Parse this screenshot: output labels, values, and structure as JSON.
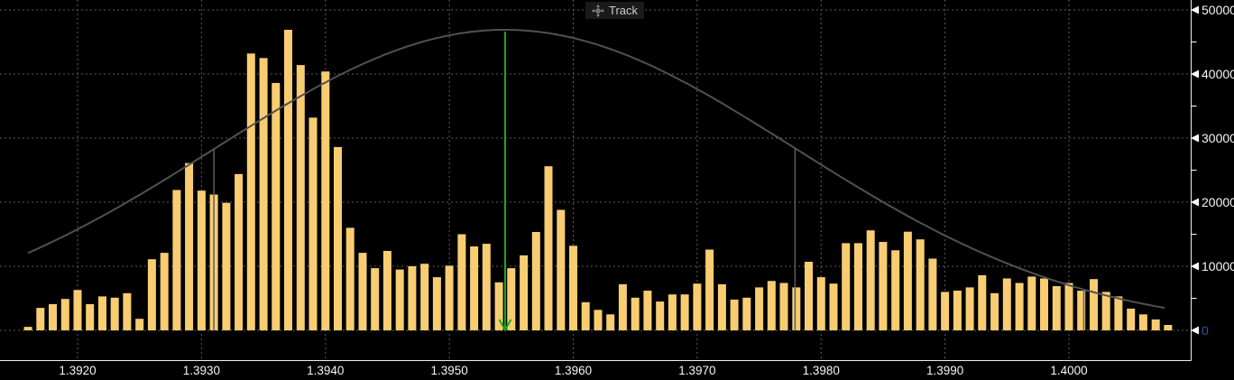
{
  "track_tool": {
    "label": "Track",
    "icon": "move-crosshair-icon"
  },
  "colors": {
    "background": "#000000",
    "bar": "#F8CD72",
    "curve": "#515151",
    "sigma_line": "#5E5E5E",
    "grid": "#5E5E5E",
    "axis_border": "#F0F0F0",
    "tick": "#FFFFFF",
    "axis_label": "#F5F5F5",
    "zero_label": "#34549B",
    "arrow": "#22A622",
    "chip_bg": "#1A1A1A",
    "chip_text": "#CBCBCB",
    "chip_icon": "#8C8C8C"
  },
  "chart_data": {
    "type": "bar",
    "title": "Track",
    "legend": "none",
    "grid": "dashed",
    "x_axis": {
      "tick_labels": [
        "1.3920",
        "1.3930",
        "1.3940",
        "1.3950",
        "1.3960",
        "1.3970",
        "1.3980",
        "1.3990",
        "1.4000"
      ],
      "tick_prices": [
        1.392,
        1.393,
        1.394,
        1.395,
        1.396,
        1.397,
        1.398,
        1.399,
        1.4
      ]
    },
    "y_axis": {
      "tick_labels": [
        "0",
        "10000",
        "20000",
        "30000",
        "40000",
        "50000"
      ],
      "tick_values": [
        0,
        10000,
        20000,
        30000,
        40000,
        50000
      ],
      "minor_step": 5000,
      "ylim": [
        0,
        50000
      ],
      "side": "right"
    },
    "histogram": {
      "start_price": 1.3916,
      "price_step": 0.0001,
      "values": [
        550,
        3500,
        4100,
        4900,
        6300,
        4100,
        5300,
        5100,
        5800,
        1800,
        11100,
        12100,
        21900,
        26100,
        21800,
        21200,
        19900,
        24400,
        43200,
        42500,
        38600,
        46900,
        41400,
        33200,
        40400,
        28600,
        16000,
        12100,
        9700,
        12400,
        9500,
        10000,
        10400,
        8300,
        10100,
        15000,
        13100,
        13500,
        7500,
        9700,
        11700,
        15350,
        25600,
        18800,
        13200,
        4400,
        3200,
        2500,
        7200,
        5100,
        6200,
        4500,
        5600,
        5600,
        7300,
        12600,
        7200,
        4800,
        5100,
        6700,
        7700,
        7400,
        6700,
        10700,
        8300,
        7300,
        13600,
        13600,
        15600,
        13800,
        12500,
        15400,
        14200,
        11200,
        6000,
        6200,
        6700,
        8600,
        5800,
        8100,
        7400,
        8400,
        8100,
        6900,
        7400,
        6200,
        8000,
        6000,
        5300,
        3400,
        2500,
        1700,
        850
      ]
    },
    "normal_curve": {
      "mean_price": 1.39545,
      "sigma_price": 0.002337,
      "peak_value": 46900,
      "from_price": 1.3916,
      "to_price": 1.4008
    },
    "sigma_drop_lines_prices": [
      1.3931,
      1.39779,
      1.40012
    ],
    "arrow_marker": {
      "price": 1.39545,
      "from_value": 46600,
      "to_value": 0
    }
  }
}
